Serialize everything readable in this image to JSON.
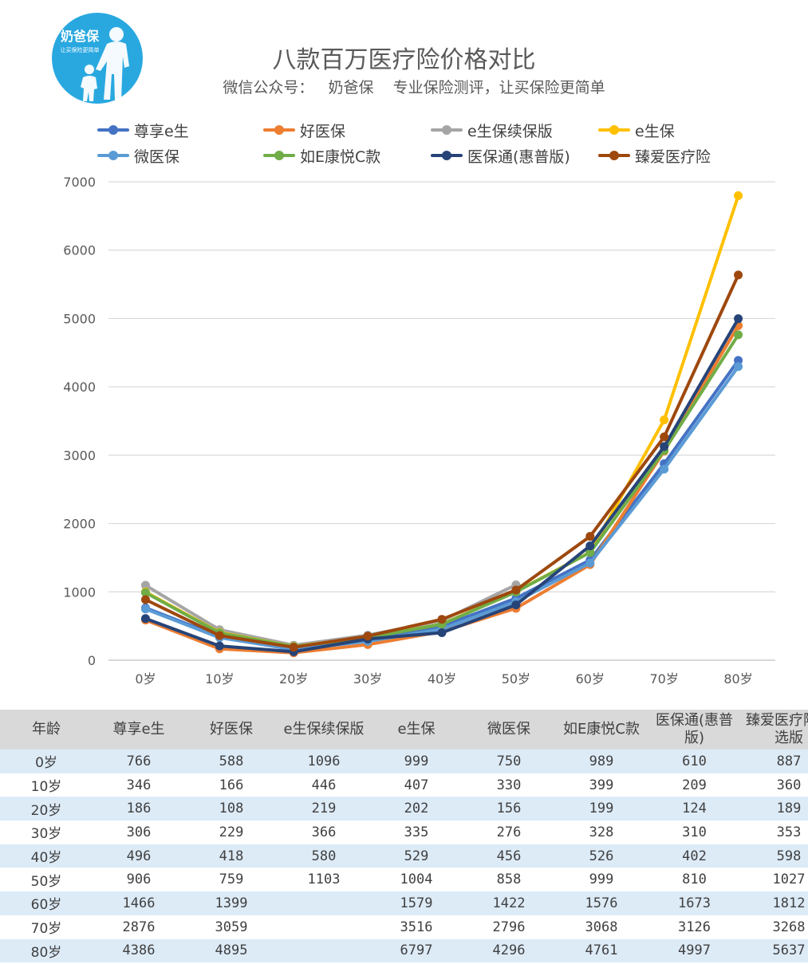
{
  "logo": {
    "text": "奶爸保",
    "tagline": "让买保险更简单",
    "color": "#29a8e0"
  },
  "header": {
    "title": "八款百万医疗险价格对比",
    "subtitle": "微信公众号：   奶爸保    专业保险测评，让买保险更简单"
  },
  "chart_data": {
    "type": "line",
    "categories": [
      "0岁",
      "10岁",
      "20岁",
      "30岁",
      "40岁",
      "50岁",
      "60岁",
      "70岁",
      "80岁"
    ],
    "ylim": [
      0,
      7000
    ],
    "yticks": [
      0,
      1000,
      2000,
      3000,
      4000,
      5000,
      6000,
      7000
    ],
    "grid": true,
    "legend_position": "top",
    "series": [
      {
        "name": "尊享e生",
        "color": "#4472c4",
        "values": [
          766,
          346,
          186,
          306,
          496,
          906,
          1466,
          2876,
          4386
        ]
      },
      {
        "name": "好医保",
        "color": "#ed7d31",
        "values": [
          588,
          166,
          108,
          229,
          418,
          759,
          1399,
          3059,
          4895
        ]
      },
      {
        "name": "e生保续保版",
        "color": "#a5a5a5",
        "values": [
          1096,
          446,
          219,
          366,
          580,
          1103,
          null,
          null,
          null
        ]
      },
      {
        "name": "e生保",
        "color": "#ffc000",
        "values": [
          999,
          407,
          202,
          335,
          529,
          1004,
          1579,
          3516,
          6797
        ]
      },
      {
        "name": "微医保",
        "color": "#5b9bd5",
        "values": [
          750,
          330,
          156,
          276,
          456,
          858,
          1422,
          2796,
          4296
        ]
      },
      {
        "name": "如E康悦C款",
        "color": "#70ad47",
        "values": [
          989,
          399,
          199,
          328,
          526,
          999,
          1576,
          3068,
          4761
        ]
      },
      {
        "name": "医保通(惠普版)",
        "color": "#264478",
        "values": [
          610,
          209,
          124,
          310,
          402,
          810,
          1673,
          3126,
          4997
        ]
      },
      {
        "name": "臻爱医疗险",
        "color": "#9e480e",
        "values": [
          887,
          360,
          189,
          353,
          598,
          1027,
          1812,
          3268,
          5637
        ]
      }
    ]
  },
  "table": {
    "headers": [
      "年龄",
      "尊享e生",
      "好医保",
      "e生保续保版",
      "e生保",
      "微医保",
      "如E康悦C款",
      "医保通(惠普版)",
      "臻爱医疗险优选版"
    ],
    "rows": [
      [
        "0岁",
        "766",
        "588",
        "1096",
        "999",
        "750",
        "989",
        "610",
        "887"
      ],
      [
        "10岁",
        "346",
        "166",
        "446",
        "407",
        "330",
        "399",
        "209",
        "360"
      ],
      [
        "20岁",
        "186",
        "108",
        "219",
        "202",
        "156",
        "199",
        "124",
        "189"
      ],
      [
        "30岁",
        "306",
        "229",
        "366",
        "335",
        "276",
        "328",
        "310",
        "353"
      ],
      [
        "40岁",
        "496",
        "418",
        "580",
        "529",
        "456",
        "526",
        "402",
        "598"
      ],
      [
        "50岁",
        "906",
        "759",
        "1103",
        "1004",
        "858",
        "999",
        "810",
        "1027"
      ],
      [
        "60岁",
        "1466",
        "1399",
        "",
        "1579",
        "1422",
        "1576",
        "1673",
        "1812"
      ],
      [
        "70岁",
        "2876",
        "3059",
        "",
        "3516",
        "2796",
        "3068",
        "3126",
        "3268"
      ],
      [
        "80岁",
        "4386",
        "4895",
        "",
        "6797",
        "4296",
        "4761",
        "4997",
        "5637"
      ]
    ]
  }
}
